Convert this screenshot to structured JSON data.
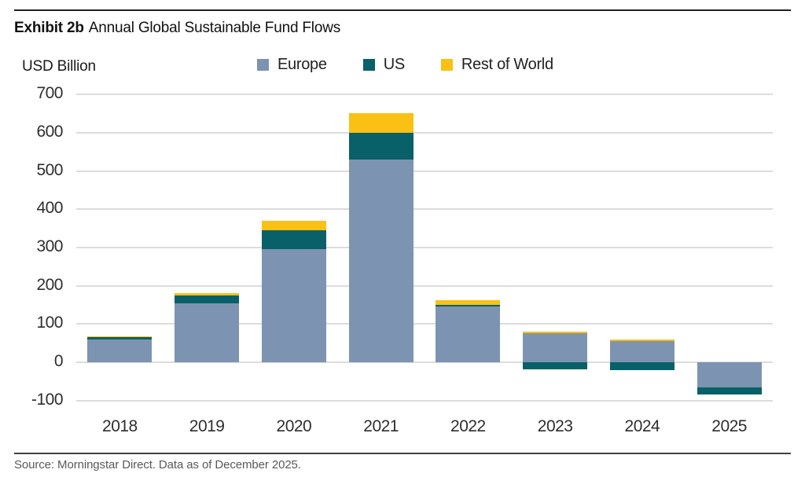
{
  "header": {
    "exhibit_label": "Exhibit 2b",
    "title": "Annual Global Sustainable Fund Flows"
  },
  "axis_unit_label": "USD Billion",
  "source_line": "Source: Morningstar Direct. Data as of December 2025.",
  "colors": {
    "europe": "#7D93B2",
    "us": "#086068",
    "rest_of_world": "#FAC114",
    "gridline": "#DCDCDC",
    "axis_text": "#2e2e2e",
    "title_text": "#111111",
    "source_text": "#58595B",
    "rule_top": "#231f20",
    "rule_bottom": "#414042"
  },
  "chart_data": {
    "type": "bar",
    "stacked": true,
    "title": "Annual Global Sustainable Fund Flows",
    "unit": "USD Billion",
    "categories": [
      "2018",
      "2019",
      "2020",
      "2021",
      "2022",
      "2023",
      "2024",
      "2025"
    ],
    "series": [
      {
        "name": "Europe",
        "color": "#7D93B2",
        "values": [
          60,
          155,
          295,
          530,
          145,
          75,
          55,
          -65
        ]
      },
      {
        "name": "US",
        "color": "#086068",
        "values": [
          5,
          20,
          50,
          70,
          5,
          -18,
          -20,
          -20
        ]
      },
      {
        "name": "Rest of World",
        "color": "#FAC114",
        "values": [
          3,
          5,
          25,
          50,
          12,
          5,
          5,
          0
        ]
      }
    ],
    "totals_net": [
      68,
      180,
      370,
      650,
      162,
      62,
      40,
      -85
    ],
    "ylim": [
      -100,
      700
    ],
    "yticks": [
      700,
      600,
      500,
      400,
      300,
      200,
      100,
      0,
      -100
    ],
    "grid": "horizontal",
    "legend_position": "top"
  }
}
